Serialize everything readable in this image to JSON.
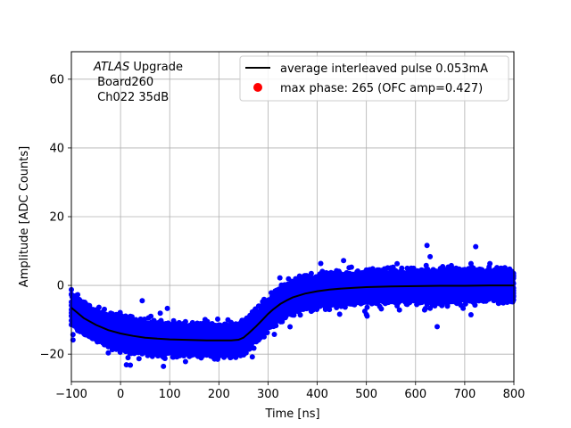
{
  "chart_data": {
    "type": "scatter",
    "title": "",
    "xlabel": "Time [ns]",
    "ylabel": "Amplitude [ADC Counts]",
    "xlim": [
      -100,
      800
    ],
    "ylim": [
      -28,
      68
    ],
    "xticks": [
      -100,
      0,
      100,
      200,
      300,
      400,
      500,
      600,
      700,
      800
    ],
    "yticks": [
      -20,
      0,
      20,
      40,
      60
    ],
    "grid": true,
    "legend_position": "top-right",
    "annotation": {
      "experiment": "ATLAS",
      "experiment_suffix": " Upgrade",
      "line2": " Board260",
      "line3": " Ch022 35dB"
    },
    "series": [
      {
        "name": "average interleaved pulse 0.053mA",
        "kind": "line",
        "color": "#000000",
        "x": [
          -100,
          -75,
          -50,
          -25,
          0,
          25,
          50,
          75,
          100,
          125,
          150,
          175,
          200,
          225,
          240,
          250,
          260,
          275,
          290,
          300,
          310,
          325,
          340,
          350,
          375,
          400,
          425,
          450,
          475,
          500,
          525,
          550,
          600,
          650,
          700,
          750,
          800
        ],
        "y": [
          -6.5,
          -9.5,
          -11.5,
          -13.0,
          -14.0,
          -14.7,
          -15.2,
          -15.5,
          -15.7,
          -15.8,
          -15.9,
          -16.0,
          -16.0,
          -16.0,
          -15.8,
          -15.2,
          -14.0,
          -12.0,
          -9.8,
          -8.3,
          -7.0,
          -5.4,
          -4.2,
          -3.5,
          -2.4,
          -1.7,
          -1.2,
          -0.9,
          -0.7,
          -0.5,
          -0.4,
          -0.3,
          -0.2,
          -0.1,
          -0.1,
          0.0,
          0.0
        ]
      },
      {
        "name": "max phase: 265 (OFC amp=0.427)",
        "kind": "marker",
        "color": "#ff0000"
      },
      {
        "name": "samples",
        "kind": "scatter",
        "color": "#0000ff",
        "spread": 4.5
      }
    ]
  }
}
